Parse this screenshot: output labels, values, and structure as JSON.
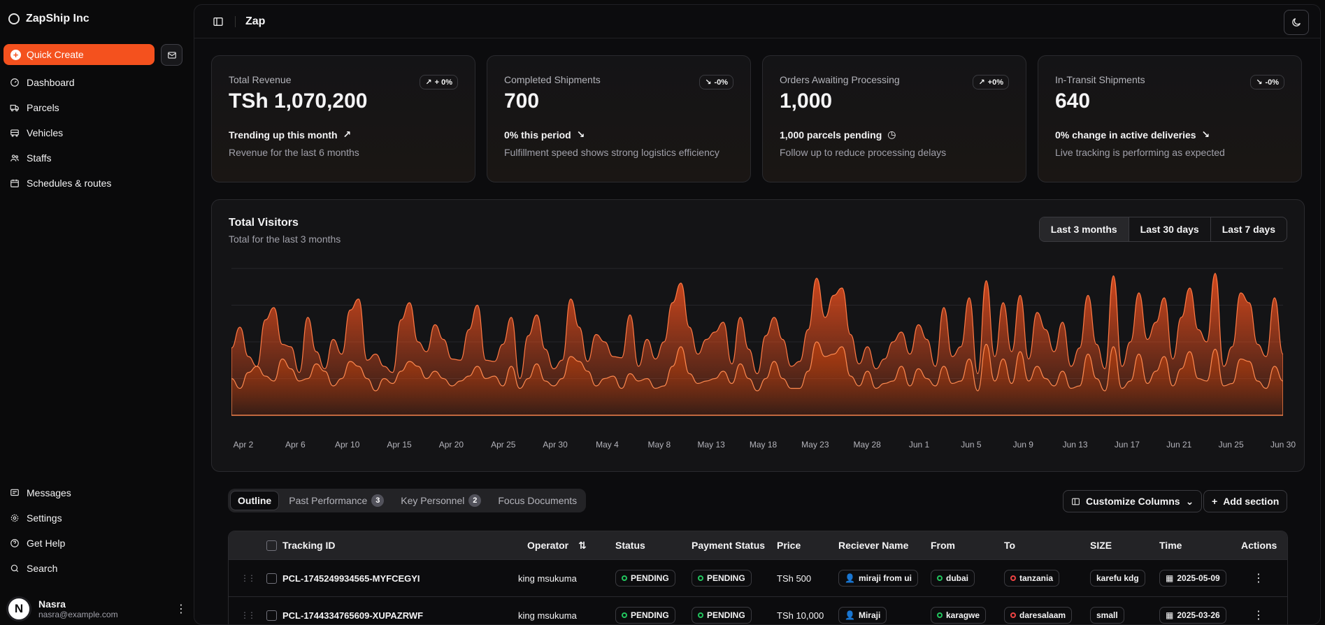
{
  "sidebar": {
    "brand": "ZapShip Inc",
    "quick_create": "Quick Create",
    "nav": [
      "Dashboard",
      "Parcels",
      "Vehicles",
      "Staffs",
      "Schedules & routes"
    ],
    "bottom_nav": [
      "Messages",
      "Settings",
      "Get Help",
      "Search"
    ],
    "user": {
      "initial": "N",
      "name": "Nasra",
      "email": "nasra@example.com"
    }
  },
  "header": {
    "title": "Zap"
  },
  "cards": [
    {
      "label": "Total Revenue",
      "value": "TSh 1,070,200",
      "badge": "+ 0%",
      "trend": "Trending up this month",
      "desc": "Revenue for the last 6 months"
    },
    {
      "label": "Completed Shipments",
      "value": "700",
      "badge": "-0%",
      "trend": "0% this period",
      "desc": "Fulfillment speed shows strong logistics efficiency"
    },
    {
      "label": "Orders Awaiting Processing",
      "value": "1,000",
      "badge": "+0%",
      "trend": "1,000 parcels pending",
      "desc": "Follow up to reduce processing delays"
    },
    {
      "label": "In-Transit Shipments",
      "value": "640",
      "badge": "-0%",
      "trend": "0% change in active deliveries",
      "desc": "Live tracking is performing as expected"
    }
  ],
  "chart": {
    "title": "Total Visitors",
    "subtitle": "Total for the last 3 months",
    "ranges": [
      "Last 3 months",
      "Last 30 days",
      "Last 7 days"
    ]
  },
  "chart_data": {
    "type": "area",
    "title": "Total Visitors",
    "x_tick_labels": [
      "Apr 2",
      "Apr 6",
      "Apr 10",
      "Apr 15",
      "Apr 20",
      "Apr 25",
      "Apr 30",
      "May 4",
      "May 8",
      "May 13",
      "May 18",
      "May 23",
      "May 28",
      "Jun 1",
      "Jun 5",
      "Jun 9",
      "Jun 13",
      "Jun 17",
      "Jun 21",
      "Jun 25",
      "Jun 30"
    ],
    "series": [
      {
        "values": [
          55,
          72,
          48,
          40,
          78,
          88,
          58,
          56,
          35,
          80,
          52,
          38,
          62,
          50,
          86,
          95,
          45,
          50,
          40,
          35,
          78,
          92,
          60,
          52,
          74,
          62,
          46,
          45,
          70,
          90,
          45,
          44,
          58,
          80,
          30,
          65,
          82,
          54,
          38,
          45,
          95,
          72,
          44,
          66,
          60,
          48,
          47,
          82,
          40,
          62,
          46,
          60,
          92,
          108,
          72,
          50,
          62,
          68,
          76,
          42,
          80,
          54,
          34,
          65,
          80,
          62,
          40,
          44,
          70,
          112,
          80,
          98,
          104,
          66,
          42,
          56,
          38,
          46,
          60,
          68,
          50,
          74,
          62,
          40,
          88,
          48,
          56,
          96,
          34,
          110,
          48,
          92,
          52,
          98,
          46,
          84,
          70,
          52,
          76,
          40,
          55,
          98,
          58,
          38,
          114,
          40,
          60,
          100,
          62,
          76,
          96,
          46,
          80,
          104,
          70,
          60,
          116,
          40,
          56,
          100,
          92,
          58,
          48,
          96,
          50
        ]
      },
      {
        "values": [
          30,
          22,
          35,
          40,
          32,
          28,
          46,
          38,
          28,
          30,
          42,
          36,
          24,
          30,
          44,
          40,
          30,
          20,
          30,
          26,
          36,
          44,
          40,
          30,
          36,
          30,
          24,
          28,
          32,
          40,
          30,
          32,
          24,
          40,
          22,
          30,
          42,
          28,
          24,
          30,
          48,
          44,
          36,
          24,
          30,
          32,
          22,
          34,
          28,
          30,
          22,
          24,
          40,
          56,
          34,
          26,
          28,
          30,
          36,
          26,
          42,
          30,
          20,
          30,
          44,
          30,
          22,
          22,
          36,
          60,
          48,
          50,
          56,
          32,
          24,
          36,
          22,
          26,
          28,
          40,
          24,
          38,
          30,
          24,
          40,
          26,
          28,
          46,
          20,
          58,
          28,
          46,
          26,
          52,
          28,
          40,
          30,
          24,
          36,
          22,
          24,
          50,
          30,
          20,
          56,
          22,
          28,
          50,
          26,
          36,
          48,
          24,
          38,
          52,
          30,
          28,
          54,
          24,
          26,
          46,
          44,
          28,
          22,
          40,
          28
        ]
      }
    ]
  },
  "tabs": [
    {
      "label": "Outline"
    },
    {
      "label": "Past Performance",
      "count": "3"
    },
    {
      "label": "Key Personnel",
      "count": "2"
    },
    {
      "label": "Focus Documents"
    }
  ],
  "buttons": {
    "customize": "Customize Columns",
    "add_section": "Add section"
  },
  "table": {
    "columns": [
      "Tracking ID",
      "Operator",
      "Status",
      "Payment Status",
      "Price",
      "Reciever Name",
      "From",
      "To",
      "SIZE",
      "Time",
      "Actions"
    ],
    "rows": [
      {
        "id": "PCL-1745249934565-MYFCEGYI",
        "operator": "king msukuma",
        "status": "PENDING",
        "payment": "PENDING",
        "price": "TSh 500",
        "receiver": "miraji from ui",
        "from": "dubai",
        "to": "tanzania",
        "size": "karefu kdg",
        "time": "2025-05-09"
      },
      {
        "id": "PCL-1744334765609-XUPAZRWF",
        "operator": "king msukuma",
        "status": "PENDING",
        "payment": "PENDING",
        "price": "TSh 10,000",
        "receiver": "Miraji",
        "from": "karagwe",
        "to": "daresalaam",
        "size": "small",
        "time": "2025-03-26"
      }
    ]
  },
  "colors": {
    "accent": "#f4511e",
    "bg": "#0a0a0b",
    "card": "#141416"
  }
}
